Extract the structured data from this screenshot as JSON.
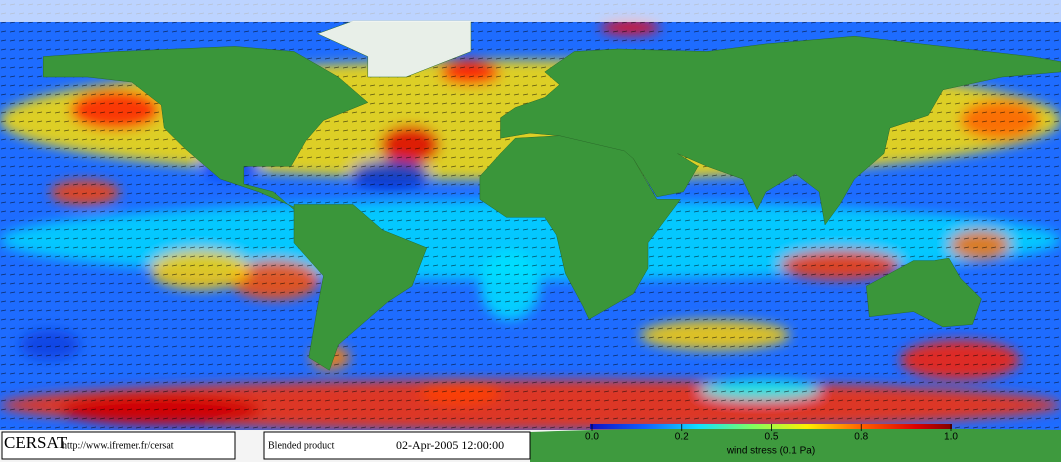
{
  "footer": {
    "brand": "CERSAT",
    "url": "http://www.ifremer.fr/cersat",
    "product": "Blended product",
    "date": "02-Apr-2005 12:00:00"
  },
  "colorbar": {
    "ticks": [
      {
        "value": 0,
        "label": "0.0"
      },
      0.2,
      0.5,
      0.8,
      {
        "value": 1,
        "label": "1.0"
      }
    ],
    "label": "wind stress (0.1 Pa)"
  }
}
